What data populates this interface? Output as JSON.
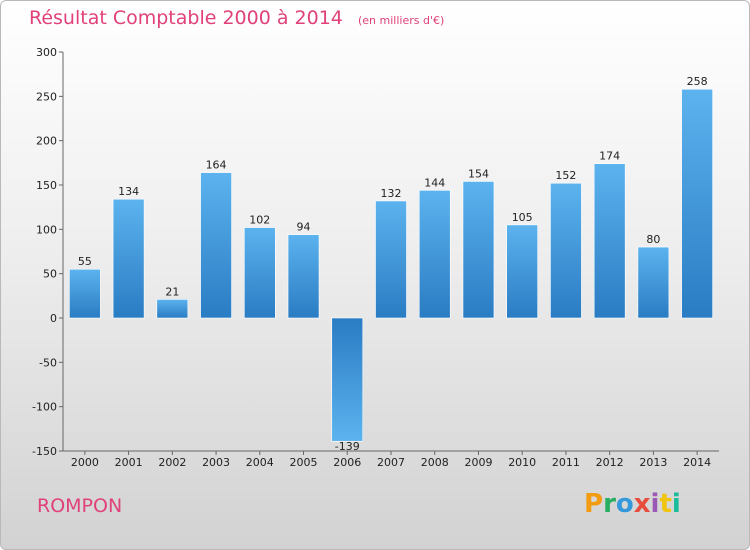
{
  "title": {
    "main": "Résultat Comptable 2000 à 2014",
    "unit": "(en milliers d'€)"
  },
  "commune": "ROMPON",
  "logo": {
    "text": "Proxiti",
    "letters": [
      "P",
      "r",
      "o",
      "x",
      "i",
      "t",
      "i"
    ],
    "colors": [
      "#f39c12",
      "#27ae60",
      "#3498db",
      "#e74c3c",
      "#9b59b6",
      "#f1c40f",
      "#1abc9c"
    ]
  },
  "chart_data": {
    "type": "bar",
    "categories": [
      "2000",
      "2001",
      "2002",
      "2003",
      "2004",
      "2005",
      "2006",
      "2007",
      "2008",
      "2009",
      "2010",
      "2011",
      "2012",
      "2013",
      "2014"
    ],
    "values": [
      55,
      134,
      21,
      164,
      102,
      94,
      -139,
      132,
      144,
      154,
      105,
      152,
      174,
      80,
      258
    ],
    "ylim": [
      -150,
      300
    ],
    "yticks": [
      -150,
      -100,
      -50,
      0,
      50,
      100,
      150,
      200,
      250,
      300
    ],
    "grid": false,
    "bar_color": "#3d8fd8"
  }
}
